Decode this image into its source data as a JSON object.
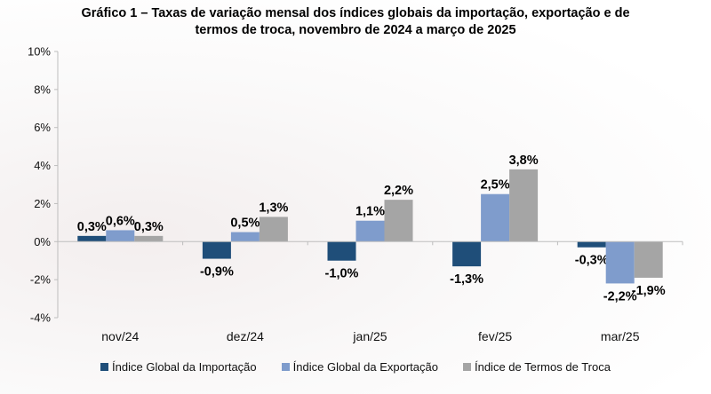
{
  "chart_data": {
    "type": "bar",
    "title_line1": "Gráfico 1 – Taxas de variação mensal dos índices globais da importação, exportação e de",
    "title_line2": "termos de troca, novembro de 2024 a março de 2025",
    "categories": [
      "nov/24",
      "dez/24",
      "jan/25",
      "fev/25",
      "mar/25"
    ],
    "series": [
      {
        "name": "Índice Global da Importação",
        "color": "#1f4e79",
        "values": [
          0.3,
          -0.9,
          -1.0,
          -1.3,
          -0.3
        ],
        "labels": [
          "0,3%",
          "-0,9%",
          "-1,0%",
          "-1,3%",
          "-0,3%"
        ]
      },
      {
        "name": "Índice Global da Exportação",
        "color": "#7f9ccc",
        "values": [
          0.6,
          0.5,
          1.1,
          2.5,
          -2.2
        ],
        "labels": [
          "0,6%",
          "0,5%",
          "1,1%",
          "2,5%",
          "-2,2%"
        ]
      },
      {
        "name": "Índice de Termos de Troca",
        "color": "#a5a5a5",
        "values": [
          0.3,
          1.3,
          2.2,
          3.8,
          -1.9
        ],
        "labels": [
          "0,3%",
          "1,3%",
          "2,2%",
          "3,8%",
          "-1,9%"
        ]
      }
    ],
    "ylim": [
      -4,
      10
    ],
    "yticks": [
      -4,
      -2,
      0,
      2,
      4,
      6,
      8,
      10
    ],
    "ytick_labels": [
      "-4%",
      "-2%",
      "0%",
      "2%",
      "4%",
      "6%",
      "8%",
      "10%"
    ],
    "grid": false,
    "legend_position": "bottom"
  }
}
